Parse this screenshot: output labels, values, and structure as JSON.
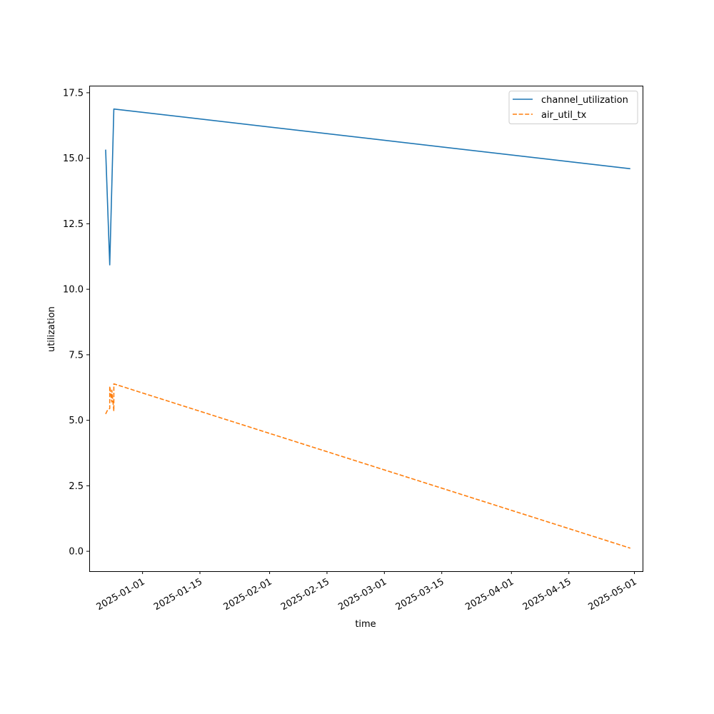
{
  "chart_data": {
    "type": "line",
    "xlabel": "time",
    "ylabel": "utilization",
    "x_axis_type": "date",
    "xlim": [
      "2024-12-19",
      "2025-05-03"
    ],
    "ylim": [
      -0.76,
      17.77
    ],
    "x_ticks": [
      "2025-01-01",
      "2025-01-15",
      "2025-02-01",
      "2025-02-15",
      "2025-03-01",
      "2025-03-15",
      "2025-04-01",
      "2025-04-15",
      "2025-05-01"
    ],
    "y_ticks": [
      0.0,
      2.5,
      5.0,
      7.5,
      10.0,
      12.5,
      15.0,
      17.5
    ],
    "y_tick_labels": [
      "0.0",
      "2.5",
      "5.0",
      "7.5",
      "10.0",
      "12.5",
      "15.0",
      "17.5"
    ],
    "grid": false,
    "legend_position": "top-right",
    "series": [
      {
        "name": "channel_utilization",
        "color": "#1f77b4",
        "style": "solid",
        "points": [
          {
            "x": "2024-12-23",
            "y": 15.33
          },
          {
            "x": "2024-12-24",
            "y": 10.93
          },
          {
            "x": "2024-12-25",
            "y": 16.88
          },
          {
            "x": "2025-04-30",
            "y": 14.6
          }
        ]
      },
      {
        "name": "air_util_tx",
        "color": "#ff7f0e",
        "style": "dashed",
        "points": [
          {
            "x": "2024-12-23",
            "y": 5.24
          },
          {
            "x": "2024-12-23T12:00",
            "y": 5.4
          },
          {
            "x": "2024-12-24",
            "y": 5.45
          },
          {
            "x": "2024-12-24",
            "y": 6.3
          },
          {
            "x": "2024-12-24T12:00",
            "y": 5.7
          },
          {
            "x": "2024-12-24T12:00",
            "y": 6.15
          },
          {
            "x": "2024-12-25",
            "y": 5.35
          },
          {
            "x": "2024-12-25",
            "y": 6.39
          },
          {
            "x": "2025-04-30",
            "y": 0.12
          }
        ]
      }
    ]
  }
}
